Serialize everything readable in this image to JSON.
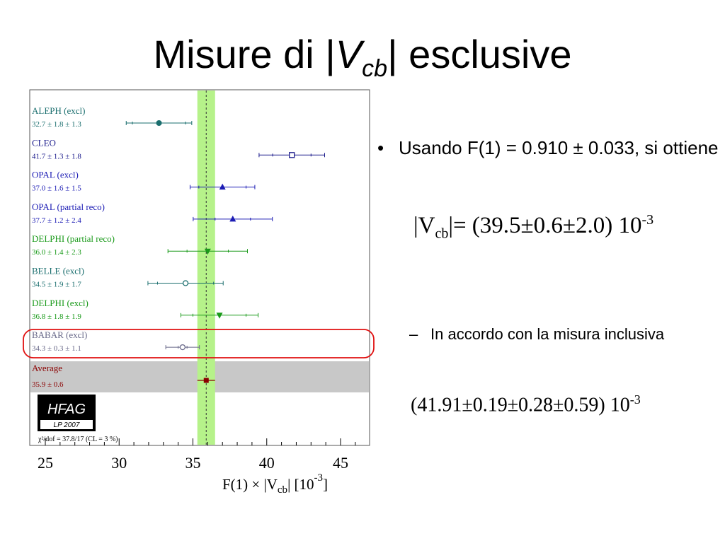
{
  "slide": {
    "title_prefix": "Misure di |",
    "title_var": "V",
    "title_sub": "cb",
    "title_suffix": "| esclusive",
    "bullet1": "Usando F(1) = 0.910 ± 0.033, si ottiene",
    "formula1_lhs": "|V",
    "formula1_sub": "cb",
    "formula1_rhs": "|= (39.5±0.6±2.0) 10",
    "formula1_exp": "-3",
    "bullet2": "In accordo con la misura inclusiva",
    "formula2_main": "(41.91±0.19±0.28±0.59) 10",
    "formula2_exp": "-3"
  },
  "chart_data": {
    "type": "scatter",
    "xlim": [
      24,
      47
    ],
    "xticks": [
      "25",
      "30",
      "35",
      "40",
      "45"
    ],
    "xlabel_main": "F(1) × |V",
    "xlabel_sub": "cb",
    "xlabel_unit": "|  [10",
    "xlabel_exp": "-3",
    "xlabel_close": "]",
    "average_band": [
      35.3,
      36.5
    ],
    "average_line": 35.9,
    "logo": "HFAG",
    "logo_sub": "LP 2007",
    "chi2_text": "χ²/dof = 37.8/17 (CL =  3 %)",
    "series": [
      {
        "exp": "ALEPH",
        "tag": "(excl)",
        "label": "32.7 ±  1.8 ±  1.3",
        "value": 32.7,
        "stat": 1.8,
        "syst": 1.3,
        "marker": "circle-filled",
        "color": "#1a6e6e"
      },
      {
        "exp": "CLEO",
        "tag": "",
        "label": "41.7 ±  1.3 ±  1.8",
        "value": 41.7,
        "stat": 1.3,
        "syst": 1.8,
        "marker": "square-open",
        "color": "#1c1c8c"
      },
      {
        "exp": "OPAL",
        "tag": "(excl)",
        "label": "37.0 ±  1.6 ±  1.5",
        "value": 37.0,
        "stat": 1.6,
        "syst": 1.5,
        "marker": "triangle-up",
        "color": "#1c1cb4"
      },
      {
        "exp": "OPAL",
        "tag": "(partial reco)",
        "label": "37.7 ±  1.2 ±  2.4",
        "value": 37.7,
        "stat": 1.2,
        "syst": 2.4,
        "marker": "triangle-up",
        "color": "#1c1cb4"
      },
      {
        "exp": "DELPHI",
        "tag": "(partial reco)",
        "label": "36.0 ±  1.4 ±  2.3",
        "value": 36.0,
        "stat": 1.4,
        "syst": 2.3,
        "marker": "triangle-down",
        "color": "#1a9a1a"
      },
      {
        "exp": "BELLE",
        "tag": "(excl)",
        "label": "34.5 ±  1.9 ±  1.7",
        "value": 34.5,
        "stat": 1.9,
        "syst": 1.7,
        "marker": "circle-open",
        "color": "#1a6e6e"
      },
      {
        "exp": "DELPHI",
        "tag": "(excl)",
        "label": "36.8 ±  1.8 ±  1.9",
        "value": 36.8,
        "stat": 1.8,
        "syst": 1.9,
        "marker": "triangle-down",
        "color": "#1a9a1a"
      },
      {
        "exp": "BABAR",
        "tag": "(excl)",
        "label": "34.3 ±  0.3 ±  1.1",
        "value": 34.3,
        "stat": 0.3,
        "syst": 1.1,
        "marker": "circle-open",
        "color": "#6a6a8a"
      }
    ],
    "average": {
      "exp": "Average",
      "label": "35.9 ±  0.6",
      "value": 35.9,
      "err": 0.6,
      "marker": "square-filled",
      "color": "#8b0000"
    }
  }
}
